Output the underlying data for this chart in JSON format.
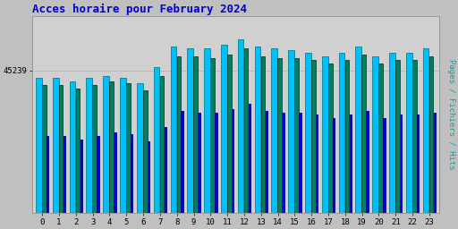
{
  "title": "Acces horaire pour February 2024",
  "title_color": "#0000cc",
  "title_fontsize": 9,
  "ylabel_right": "Pages / Fichiers / Hits",
  "ylabel_right_color": "#00aaaa",
  "background_color": "#c0c0c0",
  "plot_bg_color": "#d0d0d0",
  "hours": [
    0,
    1,
    2,
    3,
    4,
    5,
    6,
    7,
    8,
    9,
    10,
    11,
    12,
    13,
    14,
    15,
    16,
    17,
    18,
    19,
    20,
    21,
    22,
    23
  ],
  "ylim": [
    0,
    1.08
  ],
  "ytick_label": "45239",
  "ytick_value": 0.78,
  "hits": [
    0.74,
    0.74,
    0.72,
    0.74,
    0.75,
    0.74,
    0.71,
    0.8,
    0.91,
    0.9,
    0.9,
    0.92,
    0.95,
    0.91,
    0.9,
    0.89,
    0.88,
    0.86,
    0.88,
    0.91,
    0.86,
    0.88,
    0.88,
    0.9
  ],
  "fichiers": [
    0.7,
    0.7,
    0.68,
    0.7,
    0.72,
    0.71,
    0.67,
    0.75,
    0.86,
    0.86,
    0.85,
    0.87,
    0.9,
    0.86,
    0.85,
    0.85,
    0.84,
    0.82,
    0.84,
    0.87,
    0.82,
    0.84,
    0.84,
    0.86
  ],
  "pages": [
    0.42,
    0.42,
    0.4,
    0.42,
    0.44,
    0.43,
    0.39,
    0.47,
    0.56,
    0.55,
    0.55,
    0.57,
    0.6,
    0.56,
    0.55,
    0.55,
    0.54,
    0.52,
    0.54,
    0.56,
    0.52,
    0.54,
    0.54,
    0.55
  ],
  "bar_color_hits": "#00bfff",
  "bar_color_fichiers": "#008060",
  "bar_color_pages": "#0000ee",
  "bar_edge_hits": "#008888",
  "bar_edge_fichiers": "#004433",
  "bar_edge_pages": "#000088",
  "group_width": 0.85,
  "font_family": "monospace"
}
